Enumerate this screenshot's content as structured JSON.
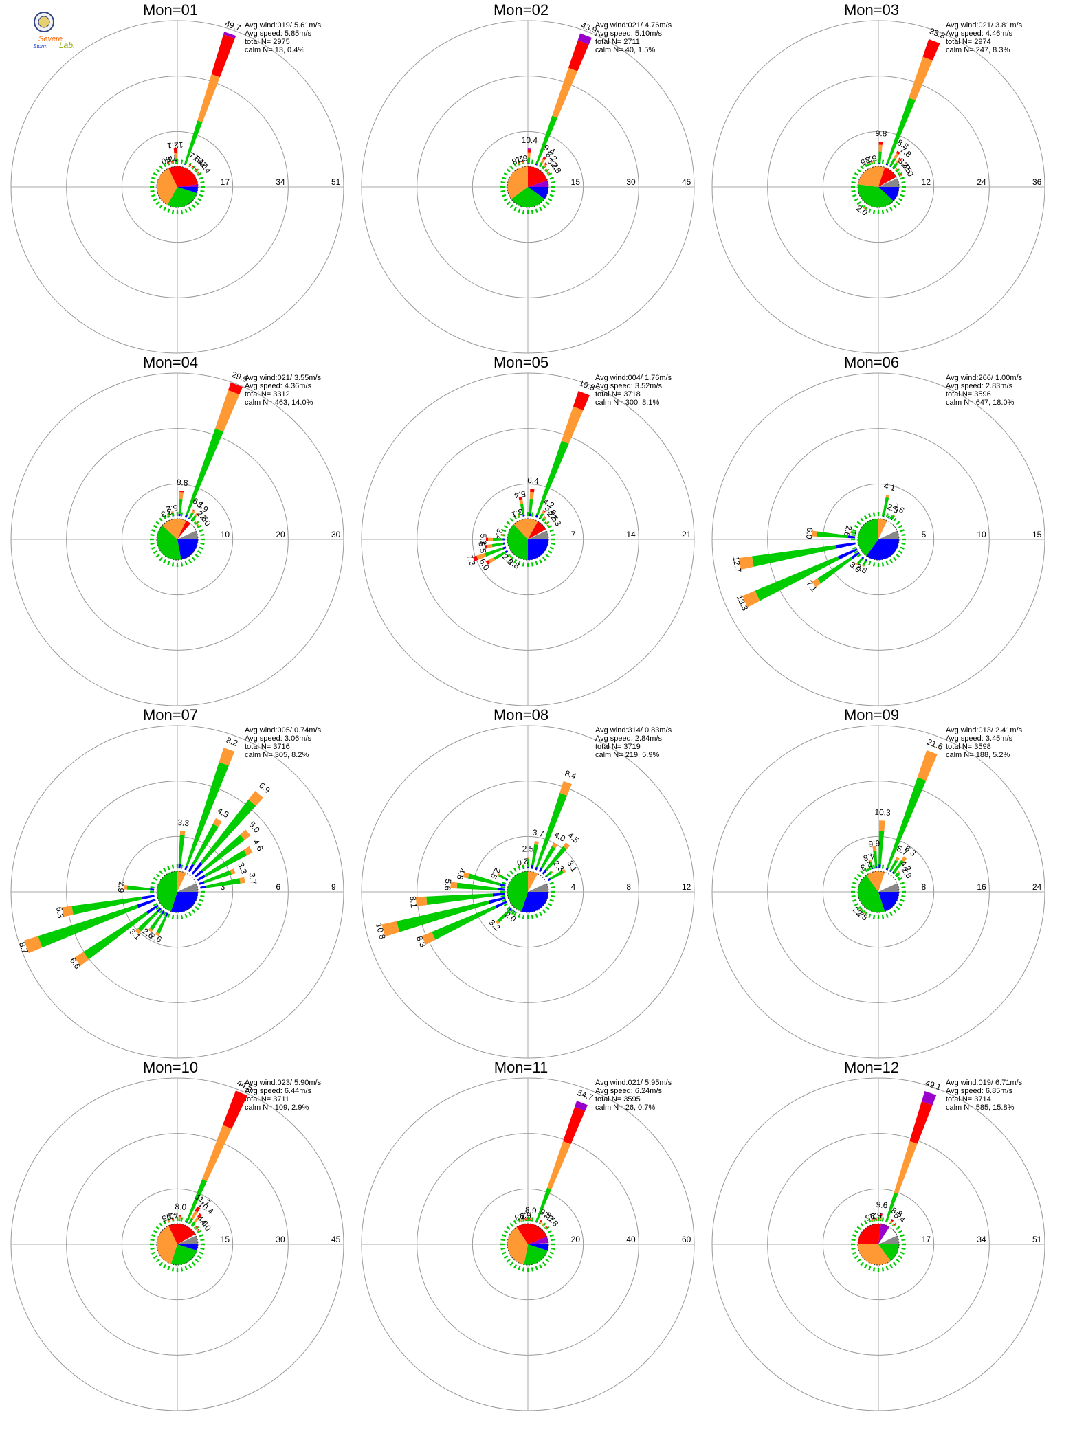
{
  "logo": {
    "text_line1": "Severe",
    "text_line2": "Storm",
    "text_line3": "Lab."
  },
  "colors": {
    "speed_bins": [
      "#0000ff",
      "#00cc00",
      "#ff9933",
      "#ff0000",
      "#9900cc"
    ],
    "calm": "#888888",
    "grid": "#999999",
    "axis": "#aaaaaa"
  },
  "chart_data": [
    {
      "type": "windrose",
      "title": "Mon=01",
      "rings": [
        17,
        34,
        51
      ],
      "stats": {
        "avg_wind": "Avg wind:019/ 5.61m/s",
        "avg_speed": "Avg speed: 5.85m/s",
        "total_n": "total N=        2975",
        "calm_n": "calm N=     13,   0.4%"
      },
      "petals": [
        [
          19,
          49.7,
          "49.7"
        ],
        [
          357,
          12.1,
          "12.1"
        ],
        [
          348,
          7.5,
          "7.5"
        ],
        [
          339,
          4.0,
          "4.0"
        ],
        [
          30,
          7.8,
          "7.8"
        ],
        [
          38,
          7.4,
          "7.4"
        ],
        [
          47,
          3.0,
          "3.0"
        ],
        [
          56,
          2.4,
          "2.4"
        ]
      ],
      "pie": [
        0.05,
        0.28,
        0.35,
        0.3,
        0.02
      ]
    },
    {
      "type": "windrose",
      "title": "Mon=02",
      "rings": [
        15,
        30,
        45
      ],
      "stats": {
        "avg_wind": "Avg wind:021/ 4.76m/s",
        "avg_speed": "Avg speed: 5.10m/s",
        "total_n": "total N=        2711",
        "calm_n": "calm N=     40,   1.5%"
      },
      "petals": [
        [
          21,
          43.9,
          "43.9"
        ],
        [
          2,
          10.4,
          "10.4"
        ],
        [
          348,
          6.1,
          "6.1"
        ],
        [
          339,
          2.8,
          "2.8"
        ],
        [
          30,
          9.4,
          "9.4"
        ],
        [
          38,
          8.2,
          "8.2"
        ],
        [
          47,
          3.2,
          "3.2"
        ],
        [
          56,
          2.8,
          "2.8"
        ]
      ],
      "pie": [
        0.1,
        0.3,
        0.35,
        0.2,
        0.05
      ]
    },
    {
      "type": "windrose",
      "title": "Mon=03",
      "rings": [
        12,
        24,
        36
      ],
      "stats": {
        "avg_wind": "Avg wind:021/ 3.81m/s",
        "avg_speed": "Avg speed: 4.46m/s",
        "total_n": "total N=        2974",
        "calm_n": "calm N=    247,   8.3%"
      },
      "petals": [
        [
          21,
          33.8,
          "33.8"
        ],
        [
          3,
          9.8,
          "9.8"
        ],
        [
          345,
          5.3,
          "5.3"
        ],
        [
          335,
          2.5,
          "2.5"
        ],
        [
          30,
          8.8,
          "8.8"
        ],
        [
          38,
          7.8,
          "7.8"
        ],
        [
          47,
          3.4,
          "3.4"
        ],
        [
          56,
          2.5,
          "2.5"
        ],
        [
          62,
          2.0,
          "2.0"
        ],
        [
          215,
          2.0,
          "2.0"
        ]
      ],
      "pie": [
        0.12,
        0.4,
        0.28,
        0.12,
        0.0
      ]
    },
    {
      "type": "windrose",
      "title": "Mon=04",
      "rings": [
        10,
        20,
        30
      ],
      "stats": {
        "avg_wind": "Avg wind:021/ 3.55m/s",
        "avg_speed": "Avg speed: 4.36m/s",
        "total_n": "total N=        3312",
        "calm_n": "calm N=    463,  14.0%"
      },
      "petals": [
        [
          21,
          29.9,
          "29.9"
        ],
        [
          5,
          8.8,
          "8.8"
        ],
        [
          350,
          5.2,
          "5.2"
        ],
        [
          338,
          3.3,
          "3.3"
        ],
        [
          30,
          6.1,
          "6.1"
        ],
        [
          38,
          5.9,
          "5.9"
        ],
        [
          47,
          2.6,
          "2.6"
        ],
        [
          56,
          2.0,
          "2.0"
        ]
      ],
      "pie": [
        0.22,
        0.4,
        0.2,
        0.04,
        0.0
      ]
    },
    {
      "type": "windrose",
      "title": "Mon=05",
      "rings": [
        7,
        14,
        21
      ],
      "stats": {
        "avg_wind": "Avg wind:004/ 1.76m/s",
        "avg_speed": "Avg speed: 3.52m/s",
        "total_n": "total N=        3718",
        "calm_n": "calm N=    300,   8.1%"
      },
      "petals": [
        [
          21,
          19.8,
          "19.8"
        ],
        [
          5,
          6.4,
          "6.4"
        ],
        [
          350,
          5.4,
          "5.4"
        ],
        [
          338,
          3.1,
          "3.1"
        ],
        [
          30,
          4.2,
          "4.2"
        ],
        [
          38,
          3.6,
          "3.6"
        ],
        [
          47,
          2.5,
          "2.5"
        ],
        [
          56,
          2.3,
          "2.3"
        ],
        [
          280,
          3.4,
          "3.4"
        ],
        [
          270,
          5.3,
          "5.3"
        ],
        [
          260,
          5.5,
          "5.5"
        ],
        [
          250,
          7.3,
          "7.3"
        ],
        [
          240,
          6.0,
          "6.0"
        ],
        [
          225,
          2.5,
          "2.5"
        ],
        [
          210,
          2.8,
          "2.8"
        ]
      ],
      "pie": [
        0.25,
        0.38,
        0.2,
        0.09,
        0.0
      ]
    },
    {
      "type": "windrose",
      "title": "Mon=06",
      "rings": [
        5,
        10,
        15
      ],
      "stats": {
        "avg_wind": "Avg wind:266/ 1.00m/s",
        "avg_speed": "Avg speed: 2.83m/s",
        "total_n": "total N=        3596",
        "calm_n": "calm N=    647,  18.0%"
      },
      "petals": [
        [
          12,
          4.1,
          "4.1"
        ],
        [
          25,
          2.3,
          "2.3"
        ],
        [
          33,
          2.6,
          "2.6"
        ],
        [
          285,
          2.6,
          "2.6"
        ],
        [
          275,
          6.0,
          "6.0"
        ],
        [
          260,
          12.7,
          "12.7"
        ],
        [
          245,
          13.3,
          "13.3"
        ],
        [
          235,
          7.1,
          "7.1"
        ],
        [
          220,
          3.0,
          "3.0"
        ],
        [
          210,
          2.8,
          "2.8"
        ]
      ],
      "pie": [
        0.35,
        0.4,
        0.07,
        0.0,
        0.0
      ]
    },
    {
      "type": "windrose",
      "title": "Mon=07",
      "rings": [
        3,
        6,
        9
      ],
      "stats": {
        "avg_wind": "Avg wind:005/ 0.74m/s",
        "avg_speed": "Avg speed: 3.06m/s",
        "total_n": "total N=        3716",
        "calm_n": "calm N=    305,   8.2%"
      },
      "petals": [
        [
          20,
          8.2,
          "8.2"
        ],
        [
          40,
          6.9,
          "6.9"
        ],
        [
          5,
          3.3,
          "3.3"
        ],
        [
          30,
          4.5,
          "4.5"
        ],
        [
          50,
          5.0,
          "5.0"
        ],
        [
          60,
          4.6,
          "4.6"
        ],
        [
          70,
          3.3,
          "3.3"
        ],
        [
          80,
          3.7,
          "3.7"
        ],
        [
          275,
          2.9,
          "2.9"
        ],
        [
          260,
          6.3,
          "6.3"
        ],
        [
          250,
          8.7,
          "8.7"
        ],
        [
          235,
          6.6,
          "6.6"
        ],
        [
          225,
          3.1,
          "3.1"
        ],
        [
          215,
          2.6,
          "2.6"
        ],
        [
          205,
          2.6,
          "2.6"
        ]
      ],
      "pie": [
        0.3,
        0.45,
        0.07,
        0.0,
        0.0
      ]
    },
    {
      "type": "windrose",
      "title": "Mon=08",
      "rings": [
        4,
        8,
        12
      ],
      "stats": {
        "avg_wind": "Avg wind:314/ 0.83m/s",
        "avg_speed": "Avg speed: 2.84m/s",
        "total_n": "total N=        3719",
        "calm_n": "calm N=    219,   5.9%"
      },
      "petals": [
        [
          20,
          8.4,
          "8.4"
        ],
        [
          10,
          3.7,
          "3.7"
        ],
        [
          0,
          2.5,
          "2.5"
        ],
        [
          350,
          2.0,
          "2.0"
        ],
        [
          30,
          4.0,
          "4.0"
        ],
        [
          40,
          4.5,
          "4.5"
        ],
        [
          50,
          2.3,
          "2.3"
        ],
        [
          60,
          3.1,
          "3.1"
        ],
        [
          300,
          2.5,
          "2.5"
        ],
        [
          285,
          4.8,
          "4.8"
        ],
        [
          275,
          5.6,
          "5.6"
        ],
        [
          265,
          8.1,
          "8.1"
        ],
        [
          255,
          10.8,
          "10.8"
        ],
        [
          245,
          8.3,
          "8.3"
        ],
        [
          225,
          3.2,
          "3.2"
        ],
        [
          215,
          2.0,
          "2.0"
        ]
      ],
      "pie": [
        0.3,
        0.45,
        0.08,
        0.0,
        0.0
      ]
    },
    {
      "type": "windrose",
      "title": "Mon=09",
      "rings": [
        8,
        16,
        24
      ],
      "stats": {
        "avg_wind": "Avg wind:013/ 2.41m/s",
        "avg_speed": "Avg speed: 3.45m/s",
        "total_n": "total N=        3598",
        "calm_n": "calm N=    188,   5.2%"
      },
      "petals": [
        [
          21,
          21.6,
          "21.6"
        ],
        [
          3,
          10.3,
          "10.3"
        ],
        [
          355,
          6.6,
          "6.6"
        ],
        [
          345,
          4.8,
          "4.8"
        ],
        [
          335,
          2.3,
          "2.3"
        ],
        [
          30,
          5.7,
          "5.7"
        ],
        [
          38,
          6.3,
          "6.3"
        ],
        [
          47,
          4.2,
          "4.2"
        ],
        [
          56,
          2.8,
          "2.8"
        ],
        [
          225,
          2.7,
          "2.7"
        ],
        [
          215,
          2.8,
          "2.8"
        ]
      ],
      "pie": [
        0.2,
        0.45,
        0.15,
        0.0,
        0.0
      ]
    },
    {
      "type": "windrose",
      "title": "Mon=10",
      "rings": [
        15,
        30,
        45
      ],
      "stats": {
        "avg_wind": "Avg wind:023/ 5.90m/s",
        "avg_speed": "Avg speed: 6.44m/s",
        "total_n": "total N=        3711",
        "calm_n": "calm N=    109,   2.9%"
      },
      "petals": [
        [
          23,
          44.5,
          "44.5"
        ],
        [
          5,
          8.0,
          "8.0"
        ],
        [
          350,
          4.9,
          "4.9"
        ],
        [
          340,
          2.5,
          "2.5"
        ],
        [
          30,
          11.7,
          "11.7"
        ],
        [
          38,
          10.4,
          "10.4"
        ],
        [
          47,
          4.0,
          "4.0"
        ],
        [
          56,
          4.0,
          "4.0"
        ]
      ],
      "pie": [
        0.05,
        0.25,
        0.38,
        0.24,
        0.0
      ]
    },
    {
      "type": "windrose",
      "title": "Mon=11",
      "rings": [
        20,
        40,
        60
      ],
      "stats": {
        "avg_wind": "Avg wind:021/ 5.95m/s",
        "avg_speed": "Avg speed: 6.24m/s",
        "total_n": "total N=        3595",
        "calm_n": "calm N=     26,   0.7%"
      },
      "petals": [
        [
          21,
          54.7,
          "54.7"
        ],
        [
          5,
          8.9,
          "8.9"
        ],
        [
          355,
          6.9,
          "6.9"
        ],
        [
          345,
          2.3,
          "2.3"
        ],
        [
          30,
          9.9,
          "9.9"
        ],
        [
          38,
          7.7,
          "7.7"
        ],
        [
          47,
          3.8,
          "3.8"
        ]
      ],
      "pie": [
        0.05,
        0.23,
        0.38,
        0.28,
        0.05
      ]
    },
    {
      "type": "windrose",
      "title": "Mon=12",
      "rings": [
        17,
        34,
        51
      ],
      "stats": {
        "avg_wind": "Avg wind:019/ 6.71m/s",
        "avg_speed": "Avg speed: 6.85m/s",
        "total_n": "total N=        3714",
        "calm_n": "calm N=    585,  15.8%"
      },
      "petals": [
        [
          19,
          49.1,
          "49.1"
        ],
        [
          5,
          9.6,
          "9.6"
        ],
        [
          355,
          5.9,
          "5.9"
        ],
        [
          345,
          2.5,
          "2.5"
        ],
        [
          30,
          8.8,
          "8.8"
        ],
        [
          38,
          5.4,
          "5.4"
        ]
      ],
      "pie": [
        0.0,
        0.15,
        0.35,
        0.27,
        0.07
      ]
    }
  ]
}
